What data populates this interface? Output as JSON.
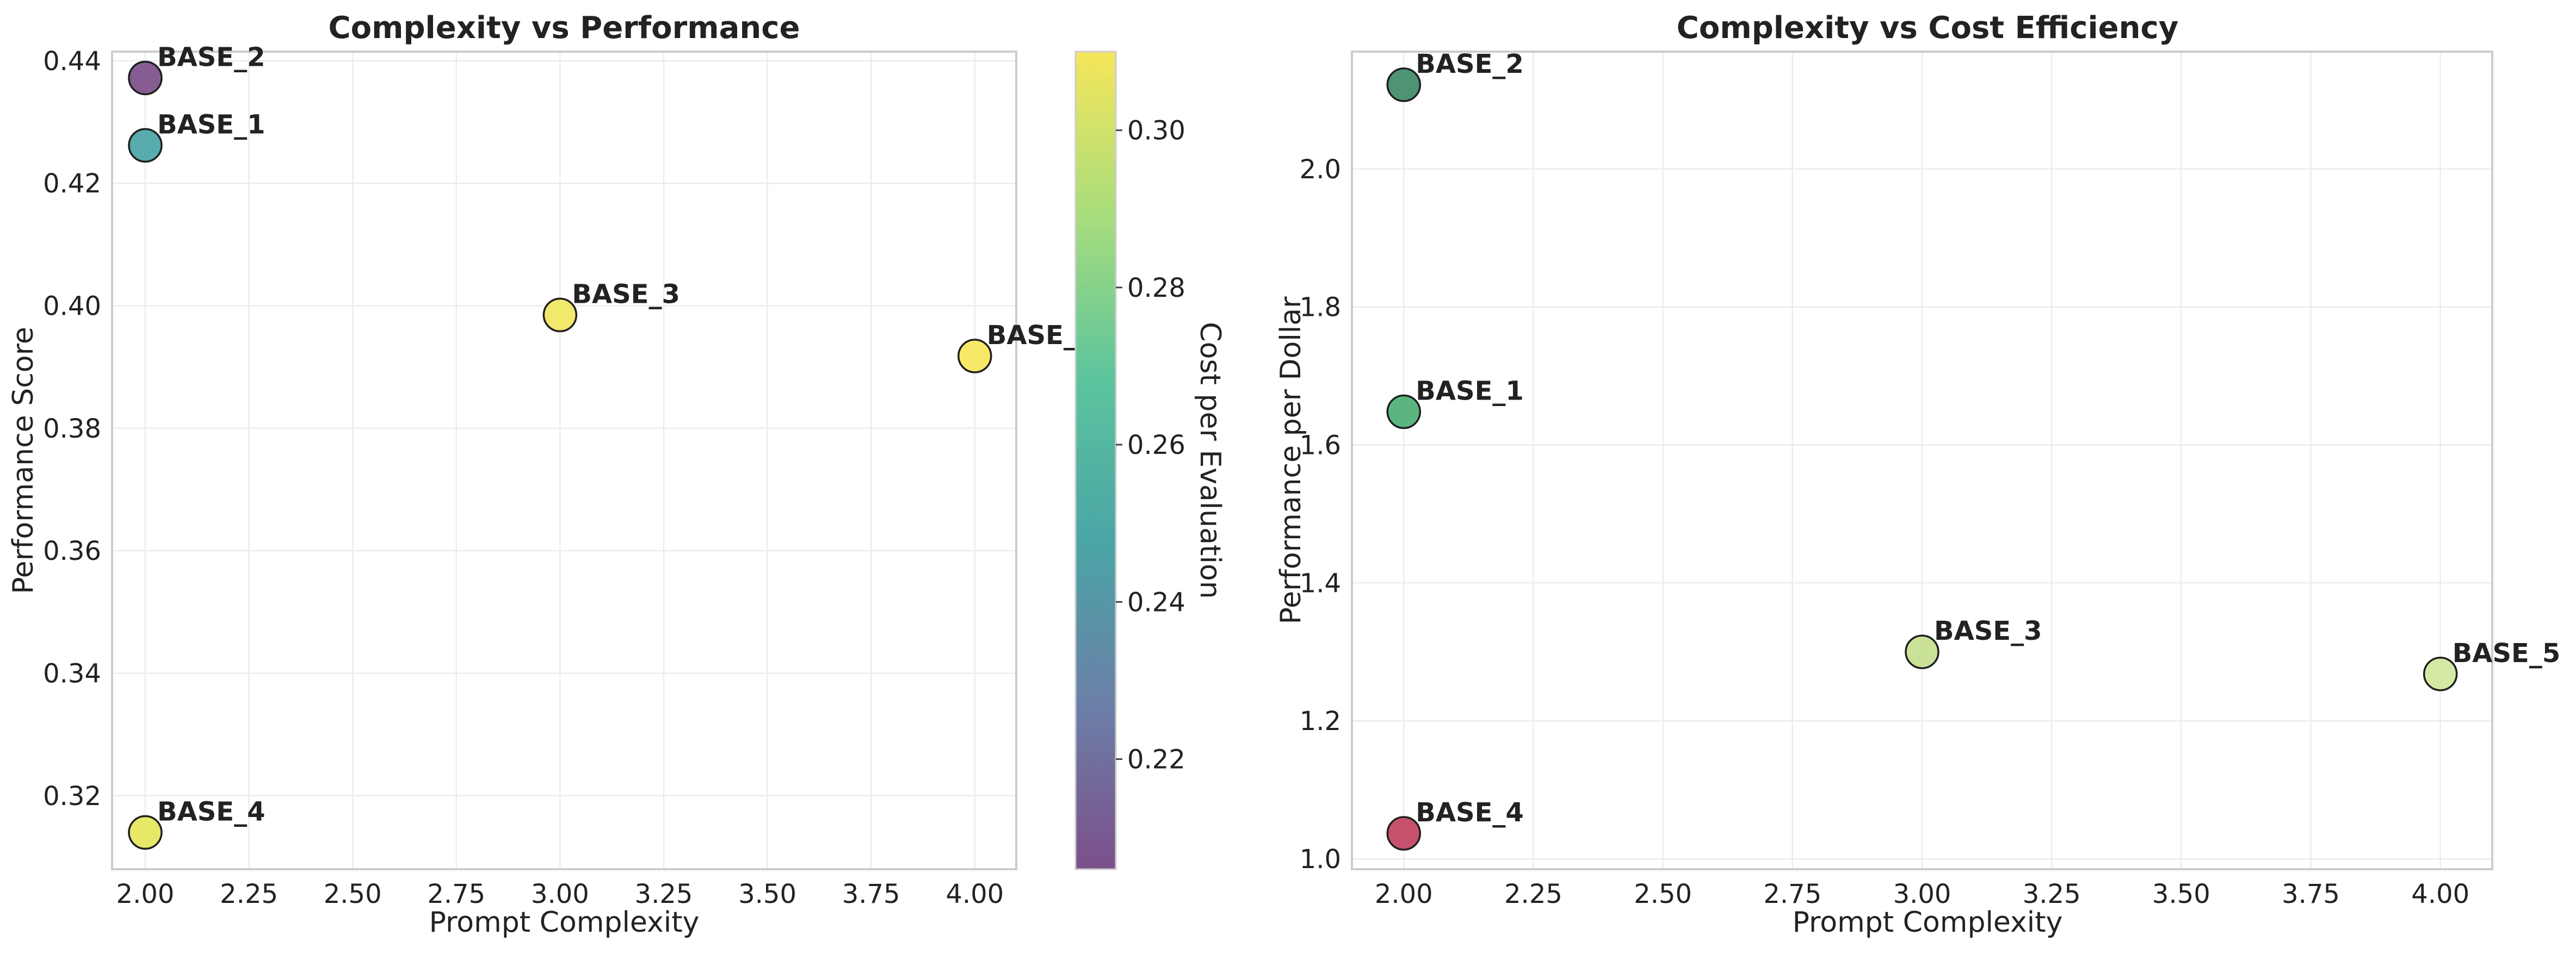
{
  "chart_data": [
    {
      "type": "scatter",
      "title": "Complexity vs Performance",
      "xlabel": "Prompt Complexity",
      "ylabel": "Performance Score",
      "xlim": [
        1.92,
        4.1
      ],
      "ylim": [
        0.308,
        0.4415
      ],
      "xticks": [
        2.0,
        2.25,
        2.5,
        2.75,
        3.0,
        3.25,
        3.5,
        3.75,
        4.0
      ],
      "xtick_labels": [
        "2.00",
        "2.25",
        "2.50",
        "2.75",
        "3.00",
        "3.25",
        "3.50",
        "3.75",
        "4.00"
      ],
      "yticks": [
        0.32,
        0.34,
        0.36,
        0.38,
        0.4,
        0.42,
        0.44
      ],
      "ytick_labels": [
        "0.32",
        "0.34",
        "0.36",
        "0.38",
        "0.40",
        "0.42",
        "0.44"
      ],
      "grid": true,
      "colormap": "viridis",
      "points": [
        {
          "label": "BASE_2",
          "x": 2.0,
          "y": 0.4372,
          "color": "#7b4f8a"
        },
        {
          "label": "BASE_1",
          "x": 2.0,
          "y": 0.4262,
          "color": "#4aa5a6"
        },
        {
          "label": "BASE_3",
          "x": 3.0,
          "y": 0.3985,
          "color": "#f0e75f"
        },
        {
          "label": "BASE_",
          "x": 4.0,
          "y": 0.3918,
          "color": "#f6e65a"
        },
        {
          "label": "BASE_4",
          "x": 2.0,
          "y": 0.314,
          "color": "#e5e65a"
        }
      ],
      "colorbar": {
        "label": "Cost per Evaluation",
        "range": [
          0.206,
          0.31
        ],
        "ticks": [
          0.22,
          0.24,
          0.26,
          0.28,
          0.3
        ],
        "tick_labels": [
          "0.22",
          "0.24",
          "0.26",
          "0.28",
          "0.30"
        ],
        "gradient": [
          "#7b4f8a",
          "#6c7fa8",
          "#4aa5a6",
          "#5cc49d",
          "#a8dd7c",
          "#f6e65a"
        ]
      }
    },
    {
      "type": "scatter",
      "title": "Complexity vs Cost Efficiency",
      "xlabel": "Prompt Complexity",
      "ylabel": "Performance per Dollar",
      "xlim": [
        1.9,
        4.1
      ],
      "ylim": [
        0.985,
        2.17
      ],
      "xticks": [
        2.0,
        2.25,
        2.5,
        2.75,
        3.0,
        3.25,
        3.5,
        3.75,
        4.0
      ],
      "xtick_labels": [
        "2.00",
        "2.25",
        "2.50",
        "2.75",
        "3.00",
        "3.25",
        "3.50",
        "3.75",
        "4.00"
      ],
      "yticks": [
        1.0,
        1.2,
        1.4,
        1.6,
        1.8,
        2.0
      ],
      "ytick_labels": [
        "1.0",
        "1.2",
        "1.4",
        "1.6",
        "1.8",
        "2.0"
      ],
      "grid": true,
      "points": [
        {
          "label": "BASE_2",
          "x": 2.0,
          "y": 2.122,
          "color": "#3f8a67"
        },
        {
          "label": "BASE_1",
          "x": 2.0,
          "y": 1.648,
          "color": "#4daf74"
        },
        {
          "label": "BASE_3",
          "x": 3.0,
          "y": 1.3,
          "color": "#c4e08f"
        },
        {
          "label": "BASE_5",
          "x": 4.0,
          "y": 1.268,
          "color": "#d0e79b"
        },
        {
          "label": "BASE_4",
          "x": 2.0,
          "y": 1.037,
          "color": "#c1425f"
        }
      ]
    }
  ]
}
